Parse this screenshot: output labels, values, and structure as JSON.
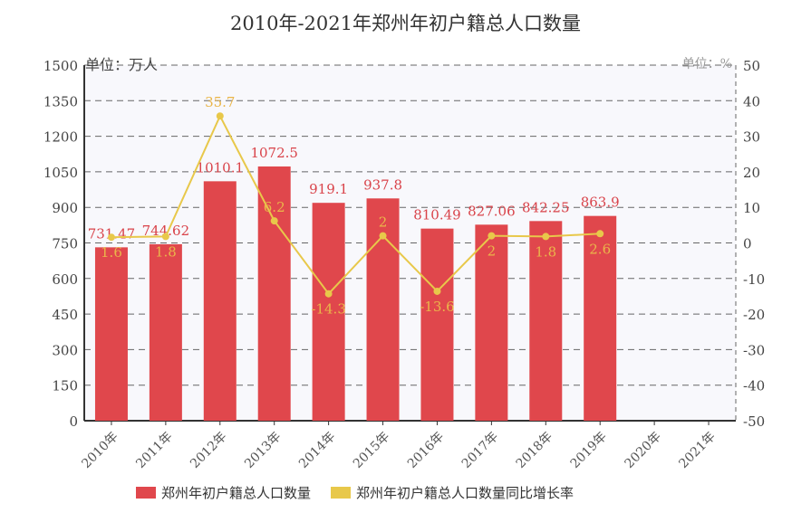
{
  "chart_data": {
    "type": "bar+line",
    "title": "2010年-2021年郑州年初户籍总人口数量",
    "categories": [
      "2010年",
      "2011年",
      "2012年",
      "2013年",
      "2014年",
      "2015年",
      "2016年",
      "2017年",
      "2018年",
      "2019年",
      "2020年",
      "2021年"
    ],
    "left_axis": {
      "unit_label": "单位：万人",
      "range": [
        0,
        1500
      ],
      "ticks": [
        0,
        150,
        300,
        450,
        600,
        750,
        900,
        1050,
        1200,
        1350,
        1500
      ]
    },
    "right_axis": {
      "unit_label": "单位：%",
      "range": [
        -50,
        50
      ],
      "ticks": [
        -50,
        -40,
        -30,
        -20,
        -10,
        0,
        10,
        20,
        30,
        40,
        50
      ]
    },
    "grid": true,
    "legend_position": "bottom",
    "series": [
      {
        "name": "郑州年初户籍总人口数量",
        "type": "bar",
        "axis": "left",
        "color": "#e0474c",
        "values": [
          731.47,
          744.62,
          1010.1,
          1072.5,
          919.1,
          937.8,
          810.49,
          827.06,
          842.25,
          863.9,
          null,
          null
        ]
      },
      {
        "name": "郑州年初户籍总人口数量同比增长率",
        "type": "line",
        "axis": "right",
        "color": "#e8c84a",
        "values": [
          1.6,
          1.8,
          35.7,
          6.2,
          -14.3,
          2,
          -13.6,
          2,
          1.8,
          2.6,
          null,
          null
        ]
      }
    ]
  }
}
